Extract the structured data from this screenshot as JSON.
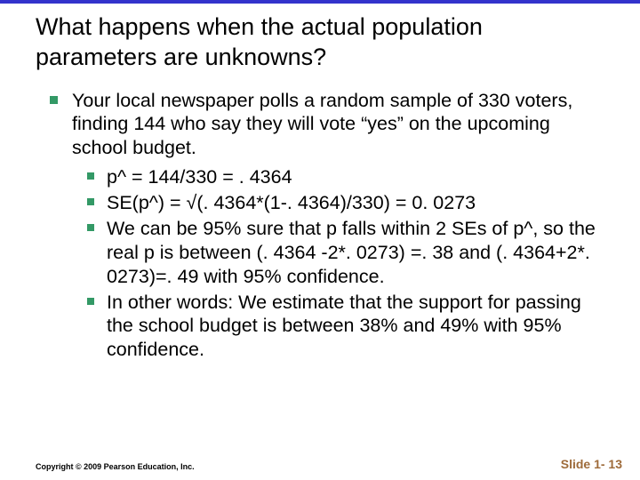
{
  "colors": {
    "top_bar": "#3333cc",
    "bullet": "#339966",
    "slide_num": "#9e6b3a",
    "text": "#000000",
    "background": "#ffffff"
  },
  "title": "What happens when the actual population parameters are unknowns?",
  "main_bullet": "Your local newspaper polls a random sample of 330 voters, finding 144 who say they will vote “yes” on the upcoming school budget.",
  "sub_bullets": [
    "p^ = 144/330 = . 4364",
    "SE(p^) = √(. 4364*(1-. 4364)/330) = 0. 0273",
    "We can be 95% sure that p falls within 2 SEs of p^, so the real p is between (. 4364 -2*. 0273) =. 38 and (. 4364+2*. 0273)=. 49 with 95% confidence.",
    "In other words: We estimate that the support for passing the school budget is between 38% and 49% with 95% confidence."
  ],
  "footer": {
    "copyright": "Copyright © 2009 Pearson Education, Inc.",
    "slide": "Slide 1- 13"
  },
  "typography": {
    "title_fontsize": 27,
    "body_fontsize": 21.5,
    "copyright_fontsize": 9,
    "slidenum_fontsize": 14
  }
}
